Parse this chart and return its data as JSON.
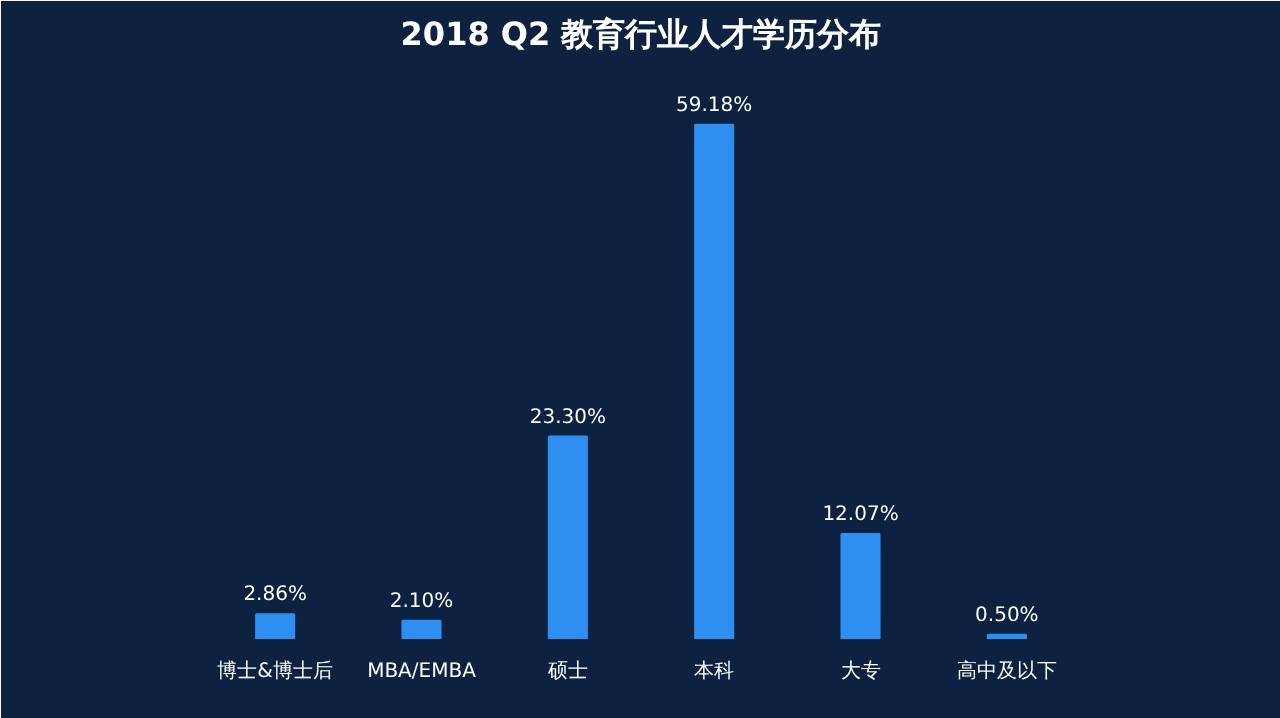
{
  "chart_data": {
    "type": "bar",
    "title": "2018 Q2 教育行业人才学历分布",
    "categories": [
      "博士&博士后",
      "MBA/EMBA",
      "硕士",
      "本科",
      "大专",
      "高中及以下"
    ],
    "values": [
      2.86,
      2.1,
      23.3,
      59.18,
      12.07,
      0.5
    ],
    "value_labels": [
      "2.86%",
      "2.10%",
      "23.30%",
      "59.18%",
      "12.07%",
      "0.50%"
    ],
    "color": "#2f8ff0"
  }
}
